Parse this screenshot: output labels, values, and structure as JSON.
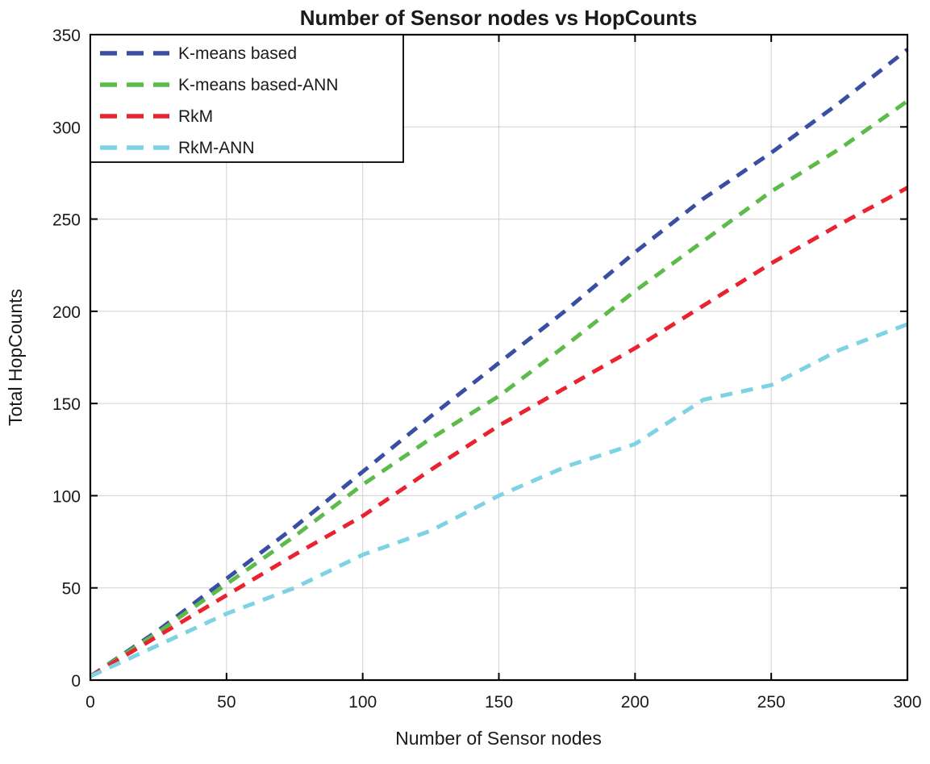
{
  "figure": {
    "background": "#ffffff",
    "axis_color": "#000000",
    "grid_color": "#d0d0d0",
    "text_color": "#1a1a1a"
  },
  "chart_data": {
    "type": "line",
    "title": "Number of Sensor nodes vs HopCounts",
    "xlabel": "Number of Sensor nodes",
    "ylabel": "Total HopCounts",
    "xlim": [
      0,
      300
    ],
    "ylim": [
      0,
      350
    ],
    "xticks": [
      0,
      50,
      100,
      150,
      200,
      250,
      300
    ],
    "yticks": [
      0,
      50,
      100,
      150,
      200,
      250,
      300,
      350
    ],
    "grid": true,
    "line_style": "dashed",
    "legend_position": "top-left",
    "x": [
      0,
      25,
      50,
      75,
      100,
      125,
      150,
      175,
      200,
      225,
      250,
      275,
      300
    ],
    "series": [
      {
        "name": "K-means based",
        "color": "#3a4fa3",
        "values": [
          2,
          27,
          55,
          83,
          113,
          143,
          172,
          201,
          232,
          261,
          286,
          313,
          342
        ]
      },
      {
        "name": "K-means based-ANN",
        "color": "#5cbb49",
        "values": [
          2,
          26,
          52,
          78,
          106,
          131,
          154,
          182,
          211,
          238,
          265,
          288,
          314
        ]
      },
      {
        "name": "RkM",
        "color": "#ea2330",
        "values": [
          2,
          24,
          46,
          68,
          89,
          114,
          138,
          159,
          180,
          203,
          226,
          247,
          267
        ]
      },
      {
        "name": "RkM-ANN",
        "color": "#7dd2e3",
        "values": [
          2,
          19,
          36,
          50,
          68,
          81,
          100,
          116,
          128,
          152,
          160,
          179,
          193
        ]
      }
    ]
  }
}
